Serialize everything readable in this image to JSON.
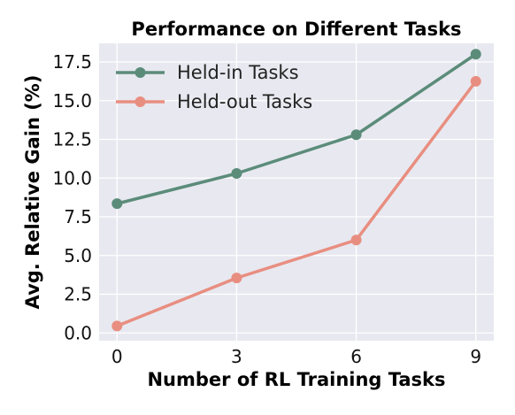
{
  "chart_data": {
    "type": "line",
    "title": "Performance on Different Tasks",
    "xlabel": "Number of RL Training Tasks",
    "ylabel": "Avg. Relative Gain (%)",
    "x": [
      0,
      3,
      6,
      9
    ],
    "x_ticks": [
      "0",
      "3",
      "6",
      "9"
    ],
    "y_ticks": [
      "0.0",
      "2.5",
      "5.0",
      "7.5",
      "10.0",
      "12.5",
      "15.0",
      "17.5"
    ],
    "xlim": [
      -0.45,
      9.45
    ],
    "ylim": [
      -0.5,
      18.7
    ],
    "grid": true,
    "legend_position": "top-left",
    "series": [
      {
        "name": "Held-in Tasks",
        "values": [
          8.35,
          10.3,
          12.8,
          18.0
        ],
        "color": "#5b8c7a"
      },
      {
        "name": "Held-out Tasks",
        "values": [
          0.45,
          3.55,
          6.0,
          16.25
        ],
        "color": "#e88e80"
      }
    ],
    "plot_background": "#e8e8f0"
  }
}
